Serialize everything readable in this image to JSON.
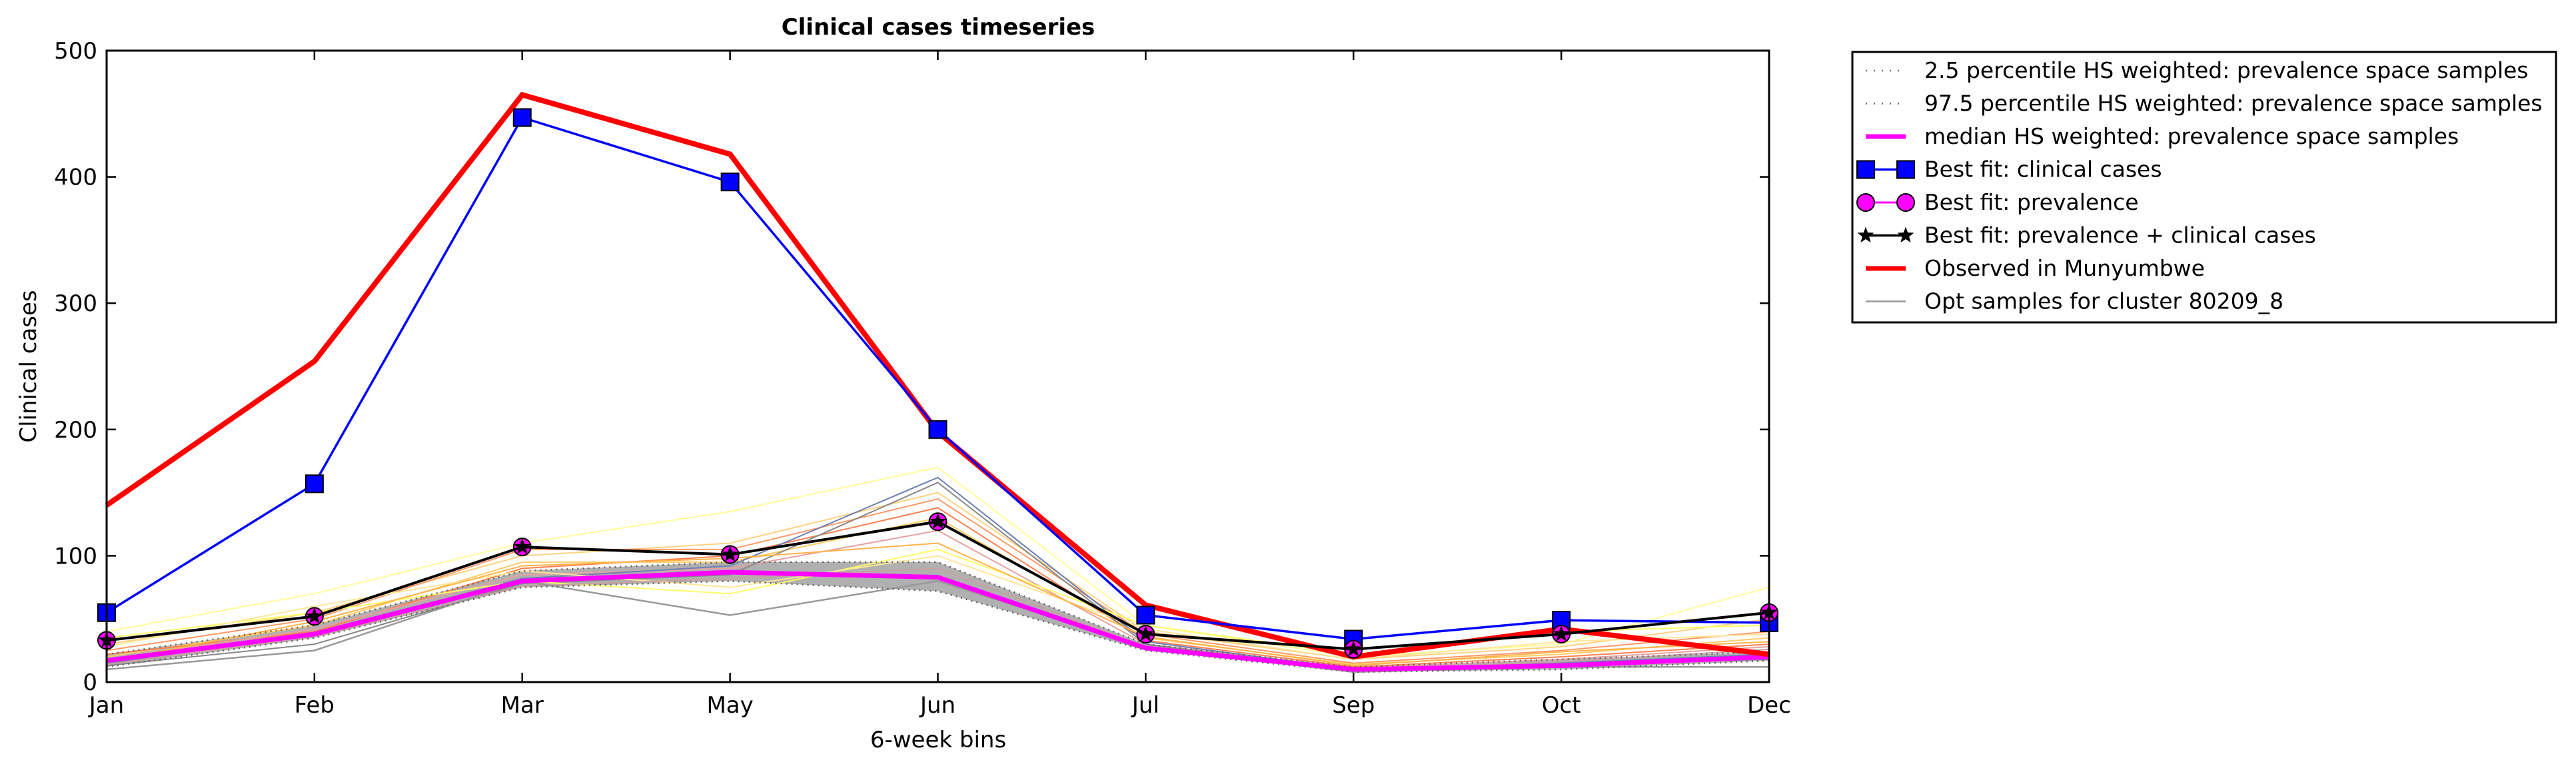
{
  "chart_data": {
    "type": "line",
    "title": "Clinical cases timeseries",
    "xlabel": "6-week bins",
    "ylabel": "Clinical cases",
    "categories": [
      "Jan",
      "Feb",
      "Mar",
      "May",
      "Jun",
      "Jul",
      "Sep",
      "Oct",
      "Dec"
    ],
    "ylim": [
      0,
      500
    ],
    "yticks": [
      0,
      100,
      200,
      300,
      400,
      500
    ],
    "grid": false,
    "legend_position": "outside-top-right",
    "band": {
      "lower": [
        12,
        35,
        75,
        80,
        72,
        25,
        8,
        10,
        17
      ],
      "upper": [
        22,
        45,
        88,
        95,
        95,
        30,
        12,
        18,
        24
      ],
      "color": "#b0b0b0"
    },
    "series": [
      {
        "name": "2.5 percentile HS weighted: prevalence space samples",
        "color": "#606060",
        "style": "dotted",
        "values": [
          12,
          35,
          75,
          80,
          72,
          25,
          8,
          10,
          17
        ]
      },
      {
        "name": "97.5 percentile HS weighted: prevalence space samples",
        "color": "#606060",
        "style": "dotted",
        "values": [
          22,
          45,
          88,
          95,
          95,
          30,
          12,
          18,
          24
        ]
      },
      {
        "name": "median HS weighted: prevalence space samples",
        "color": "#ff00ff",
        "style": "solid-thick",
        "values": [
          17,
          38,
          80,
          87,
          83,
          27,
          10,
          13,
          20
        ]
      },
      {
        "name": "Best fit: clinical cases",
        "color": "#0000ff",
        "marker": "square",
        "values": [
          55,
          157,
          447,
          396,
          200,
          53,
          34,
          49,
          47
        ]
      },
      {
        "name": "Best fit: prevalence",
        "color": "#ff00ff",
        "marker": "circle",
        "values": [
          33,
          52,
          107,
          101,
          127,
          38,
          26,
          38,
          55
        ]
      },
      {
        "name": "Best fit: prevalence + clinical cases",
        "color": "#000000",
        "marker": "star",
        "values": [
          33,
          52,
          107,
          101,
          127,
          38,
          26,
          38,
          55
        ]
      },
      {
        "name": "Observed in Munyumbwe",
        "color": "#ff0000",
        "style": "thick",
        "values": [
          140,
          254,
          465,
          418,
          198,
          61,
          20,
          42,
          22
        ]
      },
      {
        "name": "Opt samples for cluster 80209_8",
        "color": "#999999",
        "style": "thin",
        "values": [
          10,
          25,
          80,
          53,
          80,
          28,
          8,
          12,
          12
        ]
      }
    ],
    "samples": [
      {
        "color": "#ffff99",
        "values": [
          40,
          70,
          110,
          135,
          170,
          45,
          20,
          30,
          75
        ]
      },
      {
        "color": "#ffd27f",
        "values": [
          30,
          55,
          100,
          110,
          150,
          40,
          18,
          28,
          50
        ]
      },
      {
        "color": "#ff9966",
        "values": [
          25,
          50,
          105,
          105,
          145,
          38,
          15,
          25,
          40
        ]
      },
      {
        "color": "#ffcc66",
        "values": [
          20,
          45,
          95,
          95,
          130,
          35,
          14,
          22,
          35
        ]
      },
      {
        "color": "#ff7f50",
        "values": [
          22,
          40,
          90,
          100,
          138,
          33,
          12,
          20,
          30
        ]
      },
      {
        "color": "#e8a0a0",
        "values": [
          18,
          42,
          85,
          90,
          120,
          30,
          11,
          18,
          28
        ]
      },
      {
        "color": "#6b7fb3",
        "values": [
          15,
          38,
          82,
          92,
          162,
          32,
          10,
          15,
          22
        ]
      },
      {
        "color": "#888888",
        "values": [
          13,
          30,
          78,
          85,
          158,
          30,
          9,
          14,
          18
        ]
      },
      {
        "color": "#ffff66",
        "values": [
          35,
          55,
          80,
          70,
          105,
          45,
          22,
          40,
          45
        ]
      },
      {
        "color": "#ffe699",
        "values": [
          28,
          60,
          88,
          75,
          100,
          42,
          18,
          32,
          38
        ]
      },
      {
        "color": "#ffb347",
        "values": [
          16,
          48,
          92,
          98,
          110,
          36,
          13,
          24,
          32
        ]
      },
      {
        "color": "#c9a0a0",
        "values": [
          14,
          36,
          76,
          82,
          90,
          28,
          10,
          16,
          26
        ]
      }
    ]
  }
}
